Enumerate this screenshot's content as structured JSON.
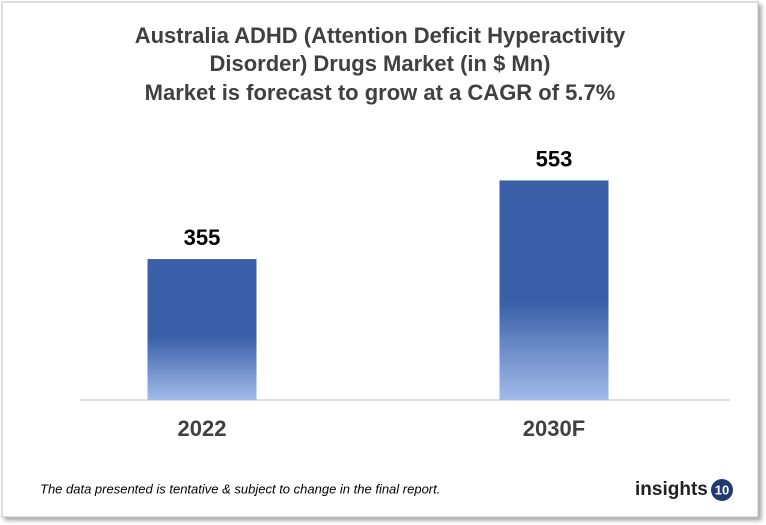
{
  "chart_data": {
    "type": "bar",
    "title": [
      "Australia ADHD (Attention Deficit Hyperactivity",
      "Disorder) Drugs Market (in $ Mn)"
    ],
    "subtitle": "Market is forecast to grow at a CAGR of 5.7%",
    "categories": [
      "2022",
      "2030F"
    ],
    "values": [
      355,
      553
    ],
    "color": "#3a5fa8"
  },
  "footnote": "The data presented is tentative & subject to change in the final report.",
  "logo": {
    "text": "insights",
    "badge": "10"
  }
}
